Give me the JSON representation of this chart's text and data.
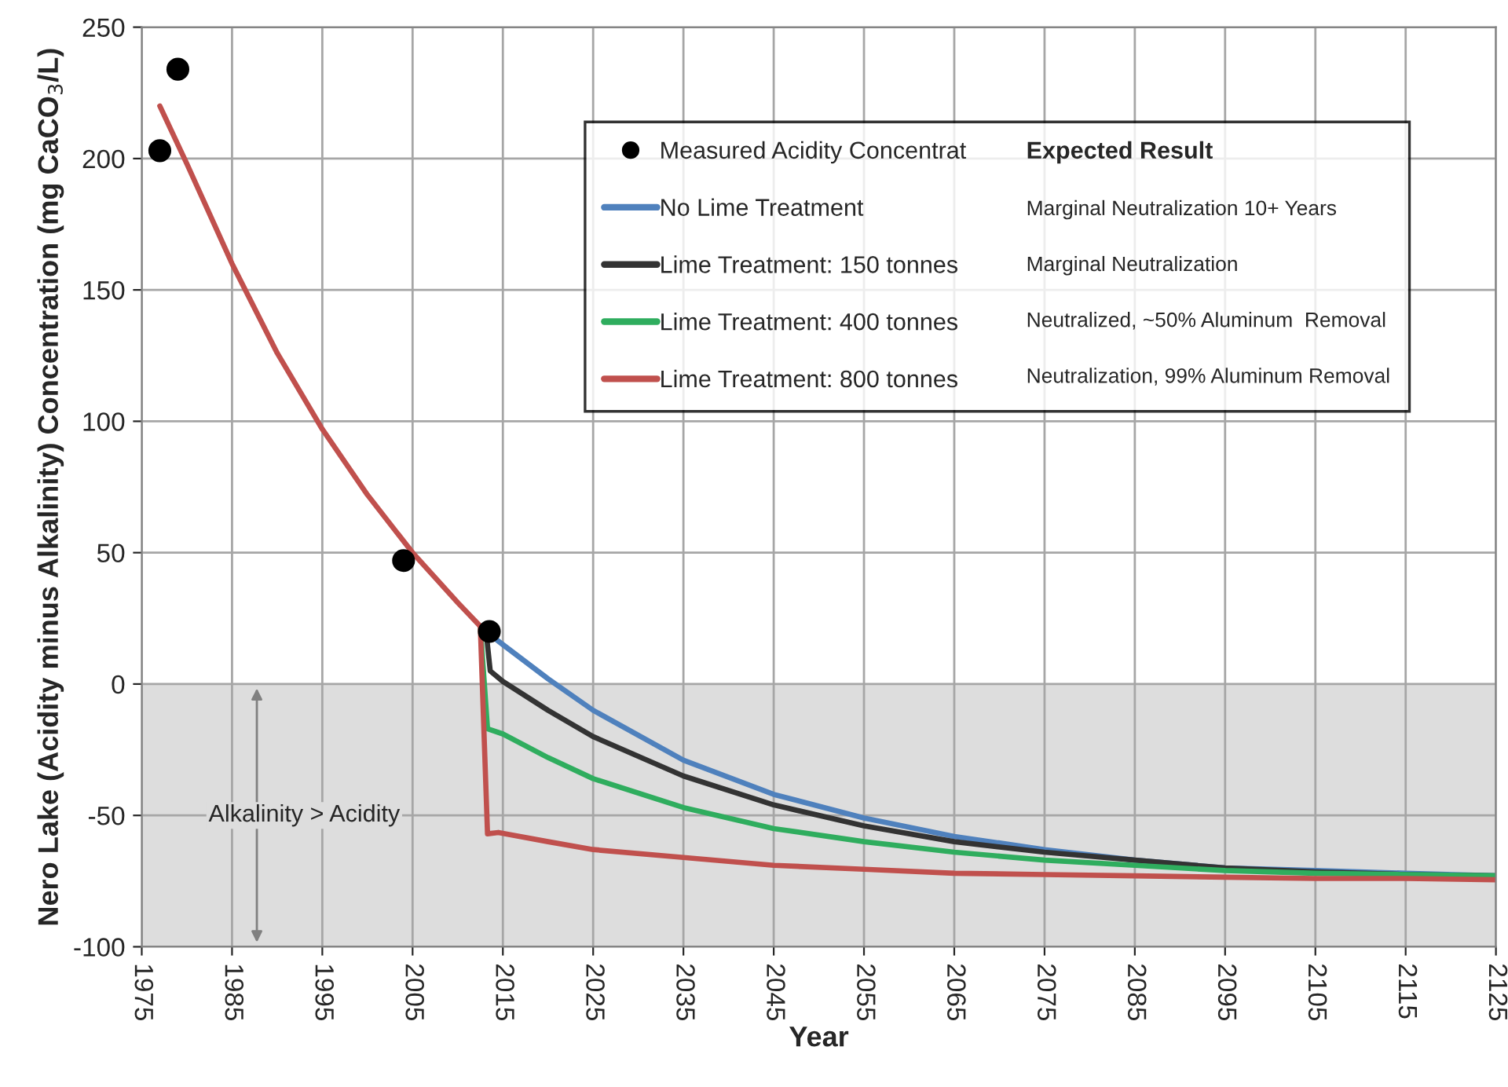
{
  "chart_data": {
    "type": "line",
    "xlabel": "Year",
    "ylabel": "Nero Lake (Acidity minus Alkalinity) Concentration (mg CaCO$_{3}$/L)",
    "xlim": [
      1975,
      2125
    ],
    "xticks": [
      1975,
      1985,
      1995,
      2005,
      2015,
      2025,
      2035,
      2045,
      2055,
      2065,
      2075,
      2085,
      2095,
      2105,
      2115,
      2125
    ],
    "ylim": [
      -100,
      250
    ],
    "yticks": [
      -100,
      -50,
      0,
      50,
      100,
      150,
      200,
      250
    ],
    "grid": true,
    "legend": "top right",
    "legend_title": "Expected Result",
    "series": [
      {
        "name": "Measured Acidity Concentrat",
        "type": "scatter",
        "marker": "circle",
        "color": "#000000",
        "x": [
          1977,
          1979,
          2004,
          2013.5
        ],
        "values": [
          203,
          234,
          47,
          20
        ]
      },
      {
        "name": "No Lime Treatment",
        "color": "#4f81bd",
        "x": [
          2012.5,
          2013.5,
          2015,
          2020,
          2025,
          2035,
          2045,
          2055,
          2065,
          2075,
          2085,
          2095,
          2105,
          2115,
          2125
        ],
        "values": [
          22,
          19,
          15,
          2,
          -10,
          -29,
          -42,
          -51,
          -58,
          -63,
          -67,
          -70,
          -71,
          -72,
          -73
        ]
      },
      {
        "name": "Lime Treatment: 150 tonnes",
        "color": "#333333",
        "x": [
          2012.5,
          2013.2,
          2013.6,
          2015,
          2020,
          2025,
          2035,
          2045,
          2055,
          2065,
          2075,
          2085,
          2095,
          2105,
          2115,
          2125
        ],
        "values": [
          22,
          18,
          5,
          1,
          -10,
          -20,
          -35,
          -46,
          -54,
          -60,
          -64,
          -67,
          -70,
          -71.5,
          -72.5,
          -73
        ]
      },
      {
        "name": "Lime Treatment: 400 tonnes",
        "color": "#2fad5e",
        "x": [
          2012.5,
          2013.3,
          2015,
          2020,
          2025,
          2035,
          2045,
          2055,
          2065,
          2075,
          2085,
          2095,
          2105,
          2115,
          2125
        ],
        "values": [
          22,
          -17,
          -19,
          -28,
          -36,
          -47,
          -55,
          -60,
          -64,
          -67,
          -69,
          -71,
          -72,
          -72.5,
          -73
        ]
      },
      {
        "name": "Lime Treatment: 800 tonnes",
        "color": "#c0504d",
        "x": [
          1977,
          1980,
          1985,
          1990,
          1995,
          2000,
          2005,
          2010,
          2012.5,
          2013.3,
          2014.5,
          2020,
          2025,
          2035,
          2045,
          2055,
          2065,
          2075,
          2085,
          2095,
          2105,
          2115,
          2125
        ],
        "values": [
          220,
          198,
          160,
          126,
          97,
          72,
          50,
          31,
          22,
          -57,
          -56.5,
          -60,
          -63,
          -66,
          -69,
          -70.5,
          -72,
          -72.5,
          -73,
          -73.5,
          -74,
          -74,
          -74.5
        ]
      }
    ],
    "annotations": [
      "Marginal Neutralization 10+ Years",
      "Marginal Neutralization",
      "Neutralized, ~50% Aluminum  Removal",
      "Neutralization, 99% Aluminum Removal"
    ],
    "bands": [
      {
        "axis": "y",
        "from": -100,
        "to": 0,
        "label": "Alkalinity > Acidity",
        "color": "#dddddd"
      }
    ]
  }
}
